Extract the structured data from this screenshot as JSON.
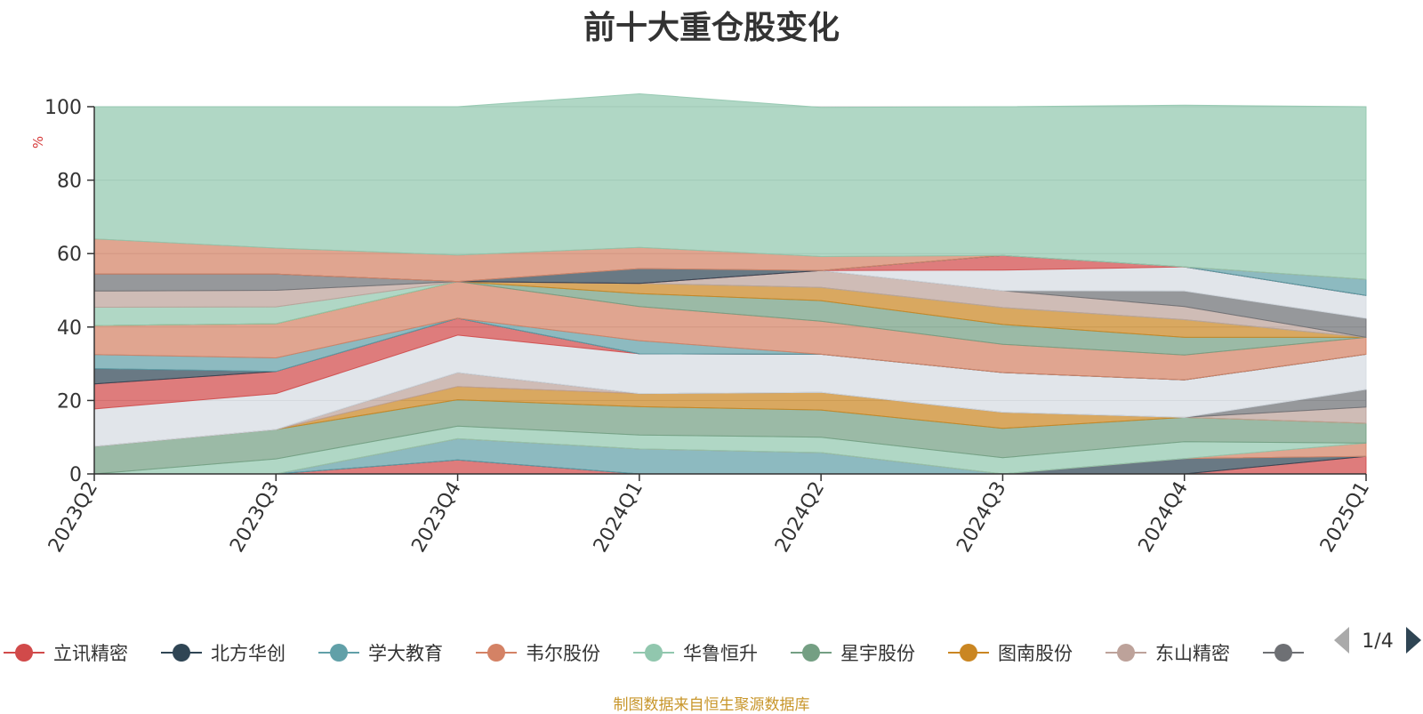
{
  "title": "前十大重仓股变化",
  "source_note": "制图数据来自恒生聚源数据库",
  "legend_page": "1/4",
  "chart_data": {
    "type": "area",
    "stacked": true,
    "title": "前十大重仓股变化",
    "ylabel": "%",
    "ylim": [
      0,
      100
    ],
    "yticks": [
      0,
      20,
      40,
      60,
      80,
      100
    ],
    "grid": true,
    "legend_position": "bottom",
    "categories": [
      "2023Q2",
      "2023Q3",
      "2023Q4",
      "2024Q1",
      "2024Q2",
      "2024Q3",
      "2024Q4",
      "2025Q1"
    ],
    "series": [
      {
        "name": "立讯精密",
        "color": "#d14a4a",
        "values": [
          0,
          0,
          3.8,
          0,
          0,
          0,
          0,
          4.8
        ]
      },
      {
        "name": "北方华创",
        "color": "#2f4554",
        "values": [
          0,
          0,
          0,
          0,
          0,
          0,
          4.2,
          0
        ]
      },
      {
        "name": "学大教育",
        "color": "#61a0a8",
        "values": [
          0,
          0,
          5.8,
          6.8,
          5.8,
          0,
          0,
          0
        ]
      },
      {
        "name": "韦尔股份",
        "color": "#d48265",
        "values": [
          0,
          0,
          0,
          0,
          0,
          0,
          0,
          3.6
        ]
      },
      {
        "name": "华鲁恒升",
        "color": "#91c7ae",
        "values": [
          0,
          4.1,
          3.4,
          3.8,
          4.2,
          4.4,
          4.6,
          0
        ]
      },
      {
        "name": "星宇股份",
        "color": "#749f83",
        "values": [
          7.5,
          8.0,
          7.2,
          7.7,
          7.4,
          8.0,
          6.6,
          5.4
        ]
      },
      {
        "name": "图南股份",
        "color": "#ca8622",
        "values": [
          0,
          0,
          3.6,
          3.6,
          4.8,
          4.4,
          0,
          0
        ]
      },
      {
        "name": "东山精密",
        "color": "#bda29a",
        "values": [
          0,
          0,
          3.8,
          0,
          0,
          0,
          0,
          4.4
        ]
      },
      {
        "name": "",
        "color": "#6e7074",
        "values": [
          0,
          0,
          0,
          0,
          0,
          0,
          0,
          4.8
        ]
      },
      {
        "name": "",
        "color": "#d5dbe2",
        "values": [
          10.2,
          9.8,
          10.2,
          10.8,
          10.4,
          10.8,
          10.2,
          9.6
        ]
      },
      {
        "name": "",
        "color": "#d14a4a",
        "values": [
          6.8,
          6.0,
          4.6,
          0,
          0,
          0,
          0,
          0
        ]
      },
      {
        "name": "",
        "color": "#2f4554",
        "values": [
          4.2,
          0,
          0,
          0,
          0,
          0,
          0,
          0
        ]
      },
      {
        "name": "",
        "color": "#61a0a8",
        "values": [
          3.8,
          3.7,
          0,
          3.6,
          0,
          0,
          0,
          0
        ]
      },
      {
        "name": "",
        "color": "#d48265",
        "values": [
          7.9,
          9.3,
          10.0,
          9.3,
          9.0,
          7.7,
          6.8,
          4.6
        ]
      },
      {
        "name": "",
        "color": "#749f83",
        "values": [
          0,
          0,
          0,
          3.5,
          5.6,
          5.4,
          4.8,
          0
        ]
      },
      {
        "name": "",
        "color": "#ca8622",
        "values": [
          0,
          0,
          0,
          2.8,
          3.6,
          4.6,
          4.8,
          0
        ]
      },
      {
        "name": "",
        "color": "#91c7ae",
        "values": [
          5.0,
          4.6,
          0,
          0,
          0,
          0,
          0,
          0
        ]
      },
      {
        "name": "",
        "color": "#bda29a",
        "values": [
          4.4,
          4.5,
          0,
          0,
          4.6,
          4.6,
          3.6,
          0
        ]
      },
      {
        "name": "",
        "color": "#6e7074",
        "values": [
          4.6,
          4.4,
          0,
          0,
          0,
          0,
          4.2,
          5.2
        ]
      },
      {
        "name": "",
        "color": "#d5dbe2",
        "values": [
          0,
          0,
          0,
          0,
          0,
          5.6,
          6.6,
          6.2
        ]
      },
      {
        "name": "",
        "color": "#d14a4a",
        "values": [
          0,
          0,
          0,
          0,
          0,
          4.0,
          0,
          0
        ]
      },
      {
        "name": "",
        "color": "#2f4554",
        "values": [
          0,
          0,
          0,
          4.0,
          0,
          0,
          0,
          0
        ]
      },
      {
        "name": "",
        "color": "#61a0a8",
        "values": [
          0,
          0,
          0,
          0,
          0,
          0,
          0,
          4.4
        ]
      },
      {
        "name": "",
        "color": "#d48265",
        "values": [
          9.6,
          7.1,
          7.2,
          5.8,
          3.8,
          0,
          0,
          0
        ]
      },
      {
        "name": "",
        "color": "#91c7ae",
        "values": [
          36.0,
          38.5,
          40.4,
          41.8,
          40.6,
          40.5,
          44.0,
          47.0
        ]
      }
    ]
  }
}
